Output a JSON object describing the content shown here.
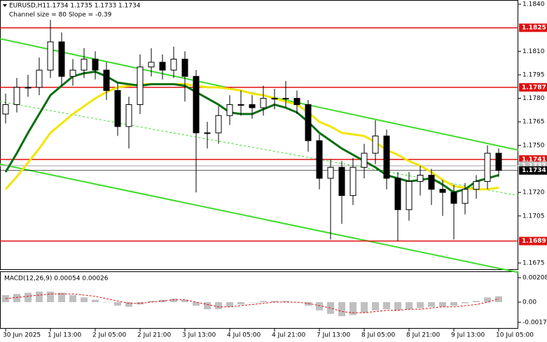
{
  "chart_data": {
    "type": "candlestick",
    "title": "EURUSD,H1",
    "ohlc_text": "1.1734 1.1735 1.1733 1.1734",
    "subtitle": "Channel size = 80 Slope = -0.39",
    "ylim": [
      1.1671,
      1.18427
    ],
    "yticks": [
      {
        "value": 1.184,
        "label": "1.1840"
      },
      {
        "value": 1.181,
        "label": "1.1810"
      },
      1.1795,
      {
        "value": 1.178,
        "label": "1.1780"
      },
      1.1765,
      {
        "value": 1.175,
        "label": "1.1750"
      },
      {
        "value": 1.172,
        "label": "1.1720"
      },
      1.1705,
      1.1675
    ],
    "xticks": [
      {
        "value": 0,
        "label": "30 Jun 2025"
      },
      {
        "value": 4,
        "label": "1 Jul 13:00"
      },
      {
        "value": 8,
        "label": "2 Jul 05:00"
      },
      {
        "value": 12,
        "label": "2 Jul 21:00"
      },
      {
        "value": 16,
        "label": "3 Jul 13:00"
      },
      {
        "value": 20,
        "label": "4 Jul 05:00"
      },
      {
        "value": 24,
        "label": "4 Jul 21:00"
      },
      {
        "value": 28,
        "label": "7 Jul 13:00"
      },
      {
        "value": 32,
        "label": "8 Jul 05:00"
      },
      {
        "value": 36,
        "label": "8 Jul 21:00"
      },
      {
        "value": 40,
        "label": "9 Jul 13:00"
      },
      {
        "value": 44,
        "label": "10 Jul 05:00"
      }
    ],
    "open": [
      1.177,
      1.1776,
      1.1787,
      1.1787,
      1.1798,
      1.1816,
      1.1794,
      1.1798,
      1.1805,
      1.1798,
      1.1785,
      1.1762,
      1.1776,
      1.18,
      1.1803,
      1.1798,
      1.1805,
      1.1794,
      1.1758,
      1.1758,
      1.1769,
      1.1776,
      1.1776,
      1.1774,
      1.178,
      1.178,
      1.178,
      1.1776,
      1.1753,
      1.1729,
      1.1736,
      1.1718,
      1.1736,
      1.1745,
      1.1756,
      1.1729,
      1.1709,
      1.1727,
      1.1731,
      1.1722,
      1.172,
      1.1713,
      1.1722,
      1.1727,
      1.1745
    ],
    "high": [
      1.1783,
      1.1793,
      1.1795,
      1.1806,
      1.183,
      1.1822,
      1.1805,
      1.1812,
      1.181,
      1.1803,
      1.179,
      1.1781,
      1.1808,
      1.1812,
      1.1808,
      1.1813,
      1.181,
      1.1798,
      1.1765,
      1.1775,
      1.1782,
      1.1785,
      1.1782,
      1.1788,
      1.1786,
      1.1791,
      1.1785,
      1.1779,
      1.1757,
      1.1741,
      1.174,
      1.1742,
      1.1751,
      1.1766,
      1.176,
      1.1733,
      1.1733,
      1.1737,
      1.1735,
      1.1728,
      1.1725,
      1.1726,
      1.1731,
      1.175,
      1.1748
    ],
    "low": [
      1.1764,
      1.1771,
      1.1781,
      1.1782,
      1.1793,
      1.1788,
      1.1788,
      1.1793,
      1.1792,
      1.1779,
      1.1756,
      1.1748,
      1.177,
      1.1794,
      1.1792,
      1.1793,
      1.1778,
      1.172,
      1.1748,
      1.1751,
      1.1763,
      1.1769,
      1.1767,
      1.1769,
      1.1773,
      1.1774,
      1.177,
      1.1746,
      1.1722,
      1.169,
      1.17,
      1.1712,
      1.1729,
      1.1738,
      1.1722,
      1.1689,
      1.1702,
      1.1718,
      1.1712,
      1.1705,
      1.169,
      1.1706,
      1.1716,
      1.1722,
      1.173
    ],
    "close": [
      1.1776,
      1.1787,
      1.1787,
      1.1798,
      1.1816,
      1.1794,
      1.1798,
      1.1805,
      1.1798,
      1.1785,
      1.1762,
      1.1776,
      1.18,
      1.1803,
      1.1798,
      1.1805,
      1.1794,
      1.1758,
      1.1758,
      1.1769,
      1.1776,
      1.1776,
      1.1774,
      1.178,
      1.178,
      1.178,
      1.1776,
      1.1753,
      1.1729,
      1.1736,
      1.1718,
      1.1736,
      1.1745,
      1.1756,
      1.1729,
      1.1709,
      1.1727,
      1.1731,
      1.1722,
      1.172,
      1.1713,
      1.1722,
      1.1727,
      1.1745,
      1.1734
    ],
    "moving_averages": [
      {
        "color": "#f2e500",
        "width": 3,
        "values": [
          1.1722,
          1.173,
          1.1739,
          1.1748,
          1.1758,
          1.1764,
          1.177,
          1.1775,
          1.178,
          1.1784,
          1.1787,
          1.1788,
          1.1789,
          1.1789,
          1.1789,
          1.1789,
          1.1789,
          1.1788,
          1.1787,
          1.1787,
          1.1786,
          1.1785,
          1.1783,
          1.1782,
          1.178,
          1.1778,
          1.1776,
          1.1771,
          1.1765,
          1.1762,
          1.1758,
          1.1757,
          1.1756,
          1.1752,
          1.1747,
          1.1744,
          1.174,
          1.1737,
          1.1733,
          1.1728,
          1.1724,
          1.1723,
          1.1722,
          1.1722,
          1.1723
        ]
      },
      {
        "color": "#0b6e12",
        "width": 3,
        "values": [
          1.1733,
          1.1745,
          1.1758,
          1.177,
          1.1782,
          1.1788,
          1.1794,
          1.1796,
          1.1797,
          1.1794,
          1.179,
          1.1789,
          1.1788,
          1.1789,
          1.1789,
          1.1789,
          1.1788,
          1.1784,
          1.178,
          1.1776,
          1.1771,
          1.177,
          1.177,
          1.1773,
          1.1776,
          1.1774,
          1.1771,
          1.1765,
          1.1758,
          1.1753,
          1.1748,
          1.1744,
          1.174,
          1.1736,
          1.1731,
          1.1729,
          1.1727,
          1.1728,
          1.1729,
          1.1725,
          1.172,
          1.1722,
          1.1727,
          1.1729,
          1.1731
        ]
      }
    ],
    "trend_lines": [
      {
        "color": "#3ddc2a",
        "dashed": false,
        "start": 1.1818,
        "end": 1.1747
      },
      {
        "color": "#3ddc2a",
        "dashed": false,
        "start": 1.1738,
        "end": 1.1669
      },
      {
        "color": "#3ddc2a",
        "dashed": true,
        "start": 1.1778,
        "end": 1.1718
      }
    ],
    "levels": [
      {
        "value": 1.1825,
        "color": "#e01010"
      },
      {
        "value": 1.1787,
        "color": "#e01010"
      },
      {
        "value": 1.1741,
        "color": "#e01010"
      },
      {
        "value": 1.1737,
        "color": "#c0c0c0"
      },
      {
        "value": 1.1734,
        "color": "#000000"
      },
      {
        "value": 1.1689,
        "color": "#e01010"
      }
    ],
    "macd": {
      "title": "MACD(12,26,9) 0.00054 0.00026",
      "ylim": [
        -0.00226,
        0.00256
      ],
      "yticks": [
        0.00208,
        {
          "value": 0,
          "label": "0.00"
        },
        -0.00172
      ],
      "histogram_color": "#c0c0c0",
      "signal_color": "#e01010",
      "histogram": [
        0.0006,
        0.0007,
        0.0008,
        0.0009,
        0.0009,
        0.0008,
        0.0006,
        0.0004,
        0.0002,
        0.0,
        -0.0003,
        -0.0004,
        -0.0002,
        0.0001,
        0.0002,
        0.0003,
        0.0002,
        -0.0003,
        -0.0006,
        -0.0006,
        -0.0004,
        -0.0002,
        0.0,
        0.0001,
        0.0001,
        0.0001,
        0.0,
        -0.0003,
        -0.0007,
        -0.001,
        -0.0012,
        -0.0011,
        -0.0009,
        -0.0007,
        -0.0006,
        -0.0007,
        -0.0006,
        -0.0005,
        -0.0004,
        -0.0004,
        -0.0003,
        -0.0001,
        0.0001,
        0.0004,
        0.0005
      ],
      "signal": [
        0.0003,
        0.0004,
        0.0005,
        0.0006,
        0.0007,
        0.0007,
        0.0007,
        0.0006,
        0.0005,
        0.0003,
        0.0001,
        -0.0001,
        -0.0001,
        0.0,
        0.0001,
        0.0002,
        0.0002,
        0.0,
        -0.0002,
        -0.0004,
        -0.0004,
        -0.0003,
        -0.0002,
        -0.0001,
        0.0,
        0.0,
        0.0,
        -0.0001,
        -0.0003,
        -0.0005,
        -0.0008,
        -0.0009,
        -0.0009,
        -0.0008,
        -0.0007,
        -0.0007,
        -0.0006,
        -0.0006,
        -0.0005,
        -0.0004,
        -0.0004,
        -0.0003,
        -0.0002,
        0.0,
        0.0003
      ]
    }
  }
}
